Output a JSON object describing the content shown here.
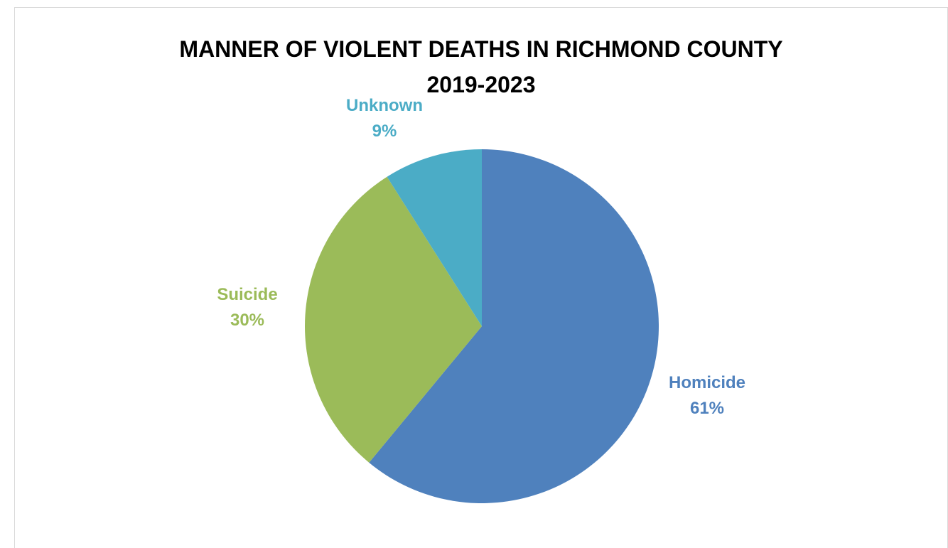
{
  "chart_data": {
    "type": "pie",
    "title_lines": [
      "MANNER OF VIOLENT DEATHS IN RICHMOND COUNTY",
      "2019-2023"
    ],
    "slices": [
      {
        "label": "Homicide",
        "value": 61,
        "value_text": "61%",
        "color": "#4f81bd"
      },
      {
        "label": "Suicide",
        "value": 30,
        "value_text": "30%",
        "color": "#9bbb59"
      },
      {
        "label": "Unknown",
        "value": 9,
        "value_text": "9%",
        "color": "#4bacc6"
      }
    ],
    "legend": "none",
    "data_labels": "outside"
  }
}
